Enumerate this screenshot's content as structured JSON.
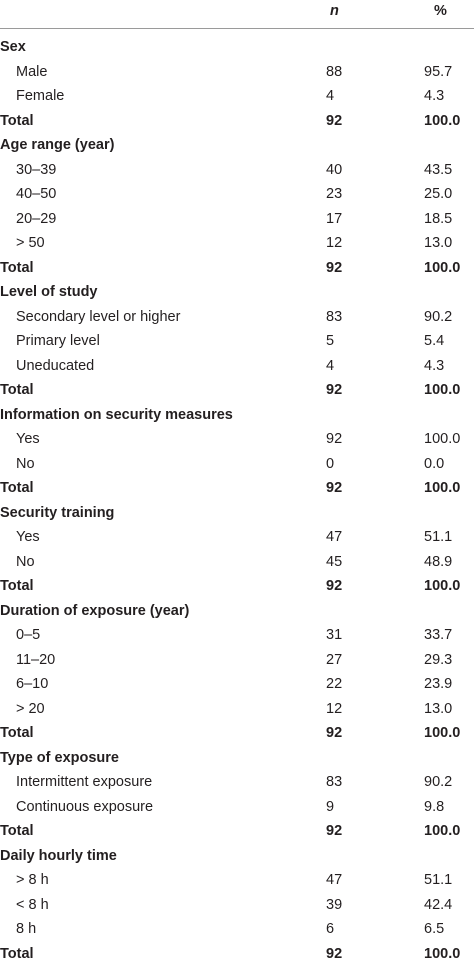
{
  "header": {
    "n": "n",
    "pct": "%"
  },
  "sections": [
    {
      "title": "Sex",
      "rows": [
        [
          "Male",
          "88",
          "95.7"
        ],
        [
          "Female",
          "4",
          "4.3"
        ]
      ],
      "total": [
        "Total",
        "92",
        "100.0"
      ]
    },
    {
      "title": "Age range (year)",
      "rows": [
        [
          "30–39",
          "40",
          "43.5"
        ],
        [
          "40–50",
          "23",
          "25.0"
        ],
        [
          "20–29",
          "17",
          "18.5"
        ],
        [
          "> 50",
          "12",
          "13.0"
        ]
      ],
      "total": [
        "Total",
        "92",
        "100.0"
      ]
    },
    {
      "title": "Level of study",
      "rows": [
        [
          "Secondary level or higher",
          "83",
          "90.2"
        ],
        [
          "Primary level",
          "5",
          "5.4"
        ],
        [
          "Uneducated",
          "4",
          "4.3"
        ]
      ],
      "total": [
        "Total",
        "92",
        "100.0"
      ]
    },
    {
      "title": "Information on security measures",
      "rows": [
        [
          "Yes",
          "92",
          "100.0"
        ],
        [
          "No",
          "0",
          "0.0"
        ]
      ],
      "total": [
        "Total",
        "92",
        "100.0"
      ]
    },
    {
      "title": "Security training",
      "rows": [
        [
          "Yes",
          "47",
          "51.1"
        ],
        [
          "No",
          "45",
          "48.9"
        ]
      ],
      "total": [
        "Total",
        "92",
        "100.0"
      ]
    },
    {
      "title": "Duration of exposure (year)",
      "rows": [
        [
          "0–5",
          "31",
          "33.7"
        ],
        [
          "11–20",
          "27",
          "29.3"
        ],
        [
          "6–10",
          "22",
          "23.9"
        ],
        [
          "> 20",
          "12",
          "13.0"
        ]
      ],
      "total": [
        "Total",
        "92",
        "100.0"
      ]
    },
    {
      "title": "Type of exposure",
      "rows": [
        [
          "Intermittent exposure",
          "83",
          "90.2"
        ],
        [
          "Continuous exposure",
          "9",
          "9.8"
        ]
      ],
      "total": [
        "Total",
        "92",
        "100.0"
      ]
    },
    {
      "title": "Daily hourly time",
      "rows": [
        [
          "> 8 h",
          "47",
          "51.1"
        ],
        [
          "< 8 h",
          "39",
          "42.4"
        ],
        [
          "8 h",
          "6",
          "6.5"
        ]
      ],
      "total": [
        "Total",
        "92",
        "100.0"
      ]
    }
  ]
}
